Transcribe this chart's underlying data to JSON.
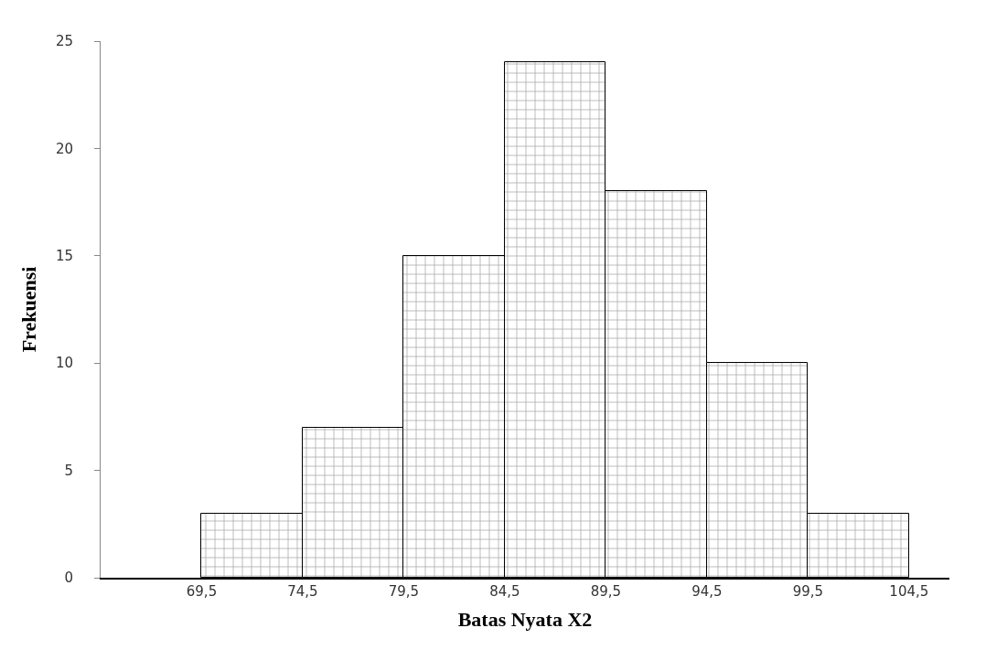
{
  "chart_data": {
    "type": "histogram",
    "xlabel": "Batas Nyata X2",
    "ylabel": "Frekuensi",
    "bins": [
      69.5,
      74.5,
      79.5,
      84.5,
      89.5,
      94.5,
      99.5,
      104.5
    ],
    "values": [
      3,
      7,
      15,
      24,
      18,
      10,
      3
    ],
    "xlim": [
      64.5,
      106.5
    ],
    "xticks": [
      {
        "value": 69.5,
        "label": "69,5"
      },
      {
        "value": 74.5,
        "label": "74,5"
      },
      {
        "value": 79.5,
        "label": "79,5"
      },
      {
        "value": 84.5,
        "label": "84,5"
      },
      {
        "value": 89.5,
        "label": "89,5"
      },
      {
        "value": 94.5,
        "label": "94,5"
      },
      {
        "value": 99.5,
        "label": "99,5"
      },
      {
        "value": 104.5,
        "label": "104,5"
      }
    ],
    "ylim": [
      0,
      25
    ],
    "yticks": [
      0,
      5,
      10,
      15,
      20,
      25
    ]
  }
}
